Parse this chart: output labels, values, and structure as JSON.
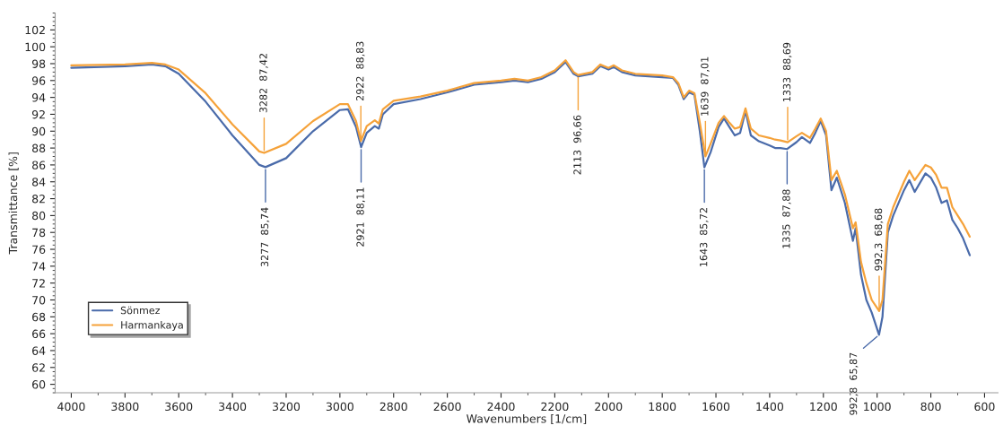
{
  "chart_data": {
    "type": "line",
    "xlabel": "Wavenumbers [1/cm]",
    "ylabel": "Transmittance [%]",
    "xlim": [
      4060,
      550
    ],
    "ylim": [
      59,
      104
    ],
    "xticks": [
      4000,
      3800,
      3600,
      3400,
      3200,
      3000,
      2800,
      2600,
      2400,
      2200,
      2000,
      1800,
      1600,
      1400,
      1200,
      1000,
      800,
      600
    ],
    "yticks": [
      60,
      62,
      64,
      66,
      68,
      70,
      72,
      74,
      76,
      78,
      80,
      82,
      84,
      86,
      88,
      90,
      92,
      94,
      96,
      98,
      100,
      102
    ],
    "grid": false,
    "legend": "bottom left",
    "marker": "none",
    "line_style": "solid",
    "series": [
      {
        "name": "Sönmez",
        "color": "#4a6baa",
        "x": [
          4000,
          3800,
          3700,
          3650,
          3600,
          3500,
          3400,
          3300,
          3277,
          3200,
          3100,
          3000,
          2970,
          2940,
          2921,
          2900,
          2870,
          2855,
          2840,
          2800,
          2700,
          2600,
          2500,
          2400,
          2350,
          2300,
          2250,
          2200,
          2160,
          2130,
          2113,
          2060,
          2030,
          2000,
          1980,
          1950,
          1900,
          1800,
          1760,
          1740,
          1720,
          1700,
          1680,
          1660,
          1643,
          1620,
          1590,
          1570,
          1550,
          1530,
          1510,
          1490,
          1470,
          1440,
          1400,
          1380,
          1360,
          1335,
          1300,
          1280,
          1250,
          1230,
          1210,
          1190,
          1170,
          1150,
          1120,
          1090,
          1080,
          1060,
          1040,
          1020,
          992.8,
          980,
          960,
          940,
          900,
          880,
          860,
          820,
          800,
          780,
          760,
          740,
          720,
          700,
          680,
          655
        ],
        "values": [
          97.5,
          97.7,
          97.9,
          97.7,
          96.8,
          93.5,
          89.5,
          86.0,
          85.74,
          86.8,
          90.0,
          92.5,
          92.6,
          90.5,
          88.11,
          89.8,
          90.6,
          90.3,
          92.0,
          93.2,
          93.8,
          94.6,
          95.5,
          95.8,
          96.0,
          95.8,
          96.2,
          97.0,
          98.2,
          96.8,
          96.5,
          96.8,
          97.7,
          97.3,
          97.6,
          97.0,
          96.6,
          96.4,
          96.3,
          95.5,
          93.8,
          94.6,
          94.3,
          90.0,
          85.72,
          87.5,
          90.5,
          91.5,
          90.5,
          89.5,
          89.8,
          92.4,
          89.5,
          88.8,
          88.3,
          88.0,
          88.0,
          87.88,
          88.7,
          89.3,
          88.6,
          89.8,
          91.2,
          89.5,
          83.0,
          84.5,
          81.5,
          77.0,
          78.5,
          73.0,
          70.0,
          68.5,
          65.87,
          68.0,
          78.0,
          80.0,
          83.0,
          84.2,
          82.8,
          85.0,
          84.5,
          83.3,
          81.5,
          81.8,
          79.5,
          78.5,
          77.3,
          75.3
        ]
      },
      {
        "name": "Harmankaya",
        "color": "#f5a23a",
        "x": [
          4000,
          3800,
          3700,
          3650,
          3600,
          3500,
          3400,
          3300,
          3282,
          3200,
          3100,
          3000,
          2970,
          2940,
          2922,
          2900,
          2870,
          2855,
          2840,
          2800,
          2700,
          2600,
          2500,
          2400,
          2350,
          2300,
          2250,
          2200,
          2160,
          2130,
          2113,
          2060,
          2030,
          2000,
          1980,
          1950,
          1900,
          1800,
          1760,
          1740,
          1720,
          1700,
          1680,
          1660,
          1639,
          1620,
          1590,
          1570,
          1550,
          1530,
          1510,
          1490,
          1470,
          1440,
          1400,
          1380,
          1360,
          1333,
          1300,
          1280,
          1250,
          1230,
          1210,
          1190,
          1170,
          1150,
          1120,
          1090,
          1080,
          1060,
          1040,
          1020,
          992.3,
          980,
          960,
          940,
          900,
          880,
          860,
          820,
          800,
          780,
          760,
          740,
          720,
          700,
          680,
          655
        ],
        "values": [
          97.8,
          97.9,
          98.1,
          97.9,
          97.3,
          94.5,
          90.8,
          87.6,
          87.42,
          88.5,
          91.2,
          93.2,
          93.2,
          91.2,
          88.83,
          90.6,
          91.3,
          90.9,
          92.6,
          93.6,
          94.1,
          94.8,
          95.7,
          96.0,
          96.2,
          96.0,
          96.4,
          97.2,
          98.4,
          97.0,
          96.66,
          97.0,
          97.9,
          97.5,
          97.8,
          97.2,
          96.8,
          96.6,
          96.4,
          95.7,
          94.0,
          94.8,
          94.5,
          91.0,
          87.01,
          88.5,
          91.0,
          91.8,
          91.0,
          90.3,
          90.5,
          92.7,
          90.3,
          89.5,
          89.2,
          89.0,
          88.9,
          88.69,
          89.4,
          89.8,
          89.2,
          90.3,
          91.5,
          90.0,
          84.2,
          85.3,
          82.5,
          78.5,
          79.2,
          74.5,
          72.0,
          70.0,
          68.68,
          70.0,
          79.0,
          81.0,
          84.0,
          85.3,
          84.2,
          86.0,
          85.7,
          84.8,
          83.3,
          83.3,
          81.0,
          80.0,
          79.0,
          77.5
        ]
      }
    ],
    "annotations": [
      {
        "text": "3282  87,42",
        "x": 3282,
        "y": 87.42
      },
      {
        "text": "3277  85,74",
        "x": 3277,
        "y": 85.74
      },
      {
        "text": "2922  88,83",
        "x": 2922,
        "y": 88.83
      },
      {
        "text": "2921  88,11",
        "x": 2921,
        "y": 88.11
      },
      {
        "text": "2113  96,66",
        "x": 2113,
        "y": 96.66
      },
      {
        "text": "1639  87,01",
        "x": 1639,
        "y": 87.01
      },
      {
        "text": "1643  85,72",
        "x": 1643,
        "y": 85.72
      },
      {
        "text": "1333  88,69",
        "x": 1333,
        "y": 88.69
      },
      {
        "text": "1335  87,88",
        "x": 1335,
        "y": 87.88
      },
      {
        "text": "992,3  68,68",
        "x": 992.3,
        "y": 68.68
      },
      {
        "text": "992,8  65,87",
        "x": 992.8,
        "y": 65.87
      }
    ]
  }
}
